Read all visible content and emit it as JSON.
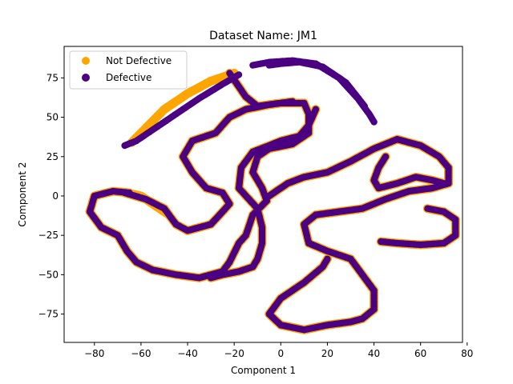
{
  "chart_data": {
    "type": "scatter",
    "title": "Dataset Name: JM1",
    "xlabel": "Component 1",
    "ylabel": "Component 2",
    "xlim": [
      -93,
      78
    ],
    "ylim": [
      -93,
      95
    ],
    "xticks": [
      -80,
      -60,
      -40,
      -20,
      0,
      20,
      40,
      60,
      80
    ],
    "yticks": [
      -75,
      -50,
      -25,
      0,
      25,
      50,
      75
    ],
    "xtick_labels": [
      "−80",
      "−60",
      "−40",
      "−20",
      "0",
      "20",
      "40",
      "60",
      "80"
    ],
    "ytick_labels": [
      "−75",
      "−50",
      "−25",
      "0",
      "25",
      "50",
      "75"
    ],
    "grid": false,
    "legend_placement": "top-left",
    "series": [
      {
        "name": "Not Defective",
        "color": "#ffa500",
        "marker_size": 5.5,
        "curves": [
          [
            [
              -20,
              78
            ],
            [
              -30,
              73
            ],
            [
              -40,
              65
            ],
            [
              -50,
              55
            ],
            [
              -58,
              43
            ],
            [
              -64,
              34
            ]
          ],
          [
            [
              -22,
              78
            ],
            [
              -15,
              63
            ],
            [
              -10,
              57
            ],
            [
              0,
              59
            ],
            [
              10,
              59
            ],
            [
              12,
              52
            ],
            [
              12,
              40
            ],
            [
              5,
              33
            ],
            [
              -5,
              30
            ],
            [
              -10,
              25
            ],
            [
              -12,
              15
            ],
            [
              -8,
              5
            ],
            [
              -6,
              -3
            ],
            [
              -12,
              -12
            ],
            [
              -15,
              -25
            ],
            [
              -18,
              -30
            ],
            [
              -22,
              -42
            ],
            [
              -25,
              -48
            ],
            [
              -35,
              -52
            ],
            [
              -45,
              -50
            ],
            [
              -55,
              -47
            ],
            [
              -62,
              -42
            ],
            [
              -66,
              -35
            ],
            [
              -70,
              -25
            ],
            [
              -77,
              -20
            ],
            [
              -82,
              -10
            ],
            [
              -80,
              0
            ],
            [
              -72,
              3
            ],
            [
              -65,
              2
            ]
          ],
          [
            [
              -67,
              2
            ],
            [
              -58,
              -2
            ],
            [
              -50,
              -8
            ],
            [
              -45,
              -18
            ],
            [
              -40,
              -22
            ],
            [
              -30,
              -18
            ],
            [
              -25,
              -10
            ],
            [
              -22,
              -5
            ],
            [
              -25,
              2
            ],
            [
              -32,
              5
            ],
            [
              -38,
              15
            ],
            [
              -42,
              25
            ],
            [
              -38,
              35
            ],
            [
              -28,
              40
            ],
            [
              -22,
              50
            ],
            [
              -15,
              55
            ],
            [
              -5,
              58
            ],
            [
              5,
              60
            ]
          ],
          [
            [
              15,
              55
            ],
            [
              12,
              45
            ],
            [
              8,
              38
            ],
            [
              0,
              35
            ],
            [
              -5,
              32
            ],
            [
              -12,
              28
            ],
            [
              -17,
              18
            ],
            [
              -18,
              5
            ],
            [
              -10,
              -8
            ],
            [
              -8,
              -20
            ],
            [
              -8,
              -30
            ],
            [
              -10,
              -40
            ],
            [
              -12,
              -45
            ],
            [
              -18,
              -48
            ],
            [
              -25,
              -50
            ],
            [
              -30,
              -52
            ]
          ],
          [
            [
              -5,
              0
            ],
            [
              0,
              5
            ],
            [
              3,
              8
            ],
            [
              10,
              12
            ],
            [
              20,
              15
            ],
            [
              30,
              22
            ],
            [
              40,
              30
            ],
            [
              50,
              36
            ],
            [
              60,
              32
            ],
            [
              68,
              25
            ],
            [
              72,
              18
            ],
            [
              72,
              8
            ],
            [
              65,
              5
            ],
            [
              55,
              3
            ],
            [
              45,
              -2
            ],
            [
              35,
              -8
            ],
            [
              25,
              -10
            ],
            [
              15,
              -12
            ],
            [
              10,
              -18
            ],
            [
              12,
              -30
            ],
            [
              20,
              -35
            ],
            [
              30,
              -40
            ],
            [
              35,
              -50
            ],
            [
              40,
              -60
            ],
            [
              40,
              -72
            ],
            [
              35,
              -78
            ],
            [
              30,
              -80
            ],
            [
              20,
              -82
            ],
            [
              10,
              -85
            ],
            [
              0,
              -82
            ],
            [
              -5,
              -75
            ],
            [
              0,
              -65
            ],
            [
              10,
              -55
            ],
            [
              18,
              -45
            ],
            [
              20,
              -40
            ]
          ],
          [
            [
              45,
              25
            ],
            [
              42,
              18
            ],
            [
              40,
              10
            ],
            [
              42,
              5
            ],
            [
              50,
              8
            ],
            [
              58,
              12
            ],
            [
              65,
              10
            ],
            [
              70,
              8
            ]
          ],
          [
            [
              43,
              -29
            ],
            [
              50,
              -30
            ],
            [
              60,
              -31
            ],
            [
              70,
              -30
            ],
            [
              75,
              -25
            ],
            [
              75,
              -15
            ],
            [
              70,
              -10
            ],
            [
              63,
              -8
            ]
          ],
          [
            [
              -66,
              2
            ],
            [
              -60,
              0
            ],
            [
              -54,
              -6
            ],
            [
              -48,
              -12
            ]
          ]
        ]
      },
      {
        "name": "Defective",
        "color": "#4b0082",
        "marker_size": 4.2,
        "curves": [
          [
            [
              -67,
              32
            ],
            [
              -62,
              35
            ],
            [
              -55,
              42
            ],
            [
              -45,
              52
            ],
            [
              -35,
              62
            ],
            [
              -25,
              71
            ],
            [
              -18,
              77
            ]
          ],
          [
            [
              -12,
              83
            ],
            [
              -5,
              85
            ],
            [
              5,
              86
            ],
            [
              15,
              84
            ],
            [
              25,
              75
            ],
            [
              33,
              62
            ],
            [
              38,
              52
            ],
            [
              40,
              47
            ]
          ],
          [
            [
              -5,
              83
            ],
            [
              0,
              84
            ],
            [
              8,
              85
            ],
            [
              18,
              82
            ],
            [
              28,
              72
            ],
            [
              36,
              57
            ]
          ],
          [
            [
              -22,
              78
            ],
            [
              -15,
              63
            ],
            [
              -10,
              57
            ],
            [
              0,
              59
            ],
            [
              10,
              59
            ],
            [
              12,
              52
            ],
            [
              12,
              40
            ],
            [
              5,
              33
            ],
            [
              -5,
              30
            ],
            [
              -10,
              25
            ],
            [
              -12,
              15
            ],
            [
              -8,
              5
            ],
            [
              -6,
              -3
            ],
            [
              -12,
              -12
            ],
            [
              -15,
              -25
            ],
            [
              -18,
              -30
            ],
            [
              -22,
              -42
            ],
            [
              -25,
              -48
            ],
            [
              -35,
              -52
            ],
            [
              -45,
              -50
            ],
            [
              -55,
              -47
            ],
            [
              -62,
              -42
            ],
            [
              -66,
              -35
            ],
            [
              -70,
              -25
            ],
            [
              -77,
              -20
            ],
            [
              -82,
              -10
            ],
            [
              -80,
              0
            ],
            [
              -72,
              3
            ],
            [
              -65,
              2
            ]
          ],
          [
            [
              -67,
              2
            ],
            [
              -58,
              -2
            ],
            [
              -50,
              -8
            ],
            [
              -45,
              -18
            ],
            [
              -40,
              -22
            ],
            [
              -30,
              -18
            ],
            [
              -25,
              -10
            ],
            [
              -22,
              -5
            ],
            [
              -25,
              2
            ],
            [
              -32,
              5
            ],
            [
              -38,
              15
            ],
            [
              -42,
              25
            ],
            [
              -38,
              35
            ],
            [
              -28,
              40
            ],
            [
              -22,
              50
            ],
            [
              -15,
              55
            ],
            [
              -5,
              58
            ],
            [
              5,
              60
            ]
          ],
          [
            [
              15,
              55
            ],
            [
              12,
              45
            ],
            [
              8,
              38
            ],
            [
              0,
              35
            ],
            [
              -5,
              32
            ],
            [
              -12,
              28
            ],
            [
              -17,
              18
            ],
            [
              -18,
              5
            ],
            [
              -10,
              -8
            ],
            [
              -8,
              -20
            ],
            [
              -8,
              -30
            ],
            [
              -10,
              -40
            ],
            [
              -12,
              -45
            ],
            [
              -18,
              -48
            ],
            [
              -25,
              -50
            ],
            [
              -30,
              -52
            ]
          ],
          [
            [
              -5,
              0
            ],
            [
              0,
              5
            ],
            [
              3,
              8
            ],
            [
              10,
              12
            ],
            [
              20,
              15
            ],
            [
              30,
              22
            ],
            [
              40,
              30
            ],
            [
              50,
              36
            ],
            [
              60,
              32
            ],
            [
              68,
              25
            ],
            [
              72,
              18
            ],
            [
              72,
              8
            ],
            [
              65,
              5
            ],
            [
              55,
              3
            ],
            [
              45,
              -2
            ],
            [
              35,
              -8
            ],
            [
              25,
              -10
            ],
            [
              15,
              -12
            ],
            [
              10,
              -18
            ],
            [
              12,
              -30
            ],
            [
              20,
              -35
            ],
            [
              30,
              -40
            ],
            [
              35,
              -50
            ],
            [
              40,
              -60
            ],
            [
              40,
              -72
            ],
            [
              35,
              -78
            ],
            [
              30,
              -80
            ],
            [
              20,
              -82
            ],
            [
              10,
              -85
            ],
            [
              0,
              -82
            ],
            [
              -5,
              -75
            ],
            [
              0,
              -65
            ],
            [
              10,
              -55
            ],
            [
              18,
              -45
            ],
            [
              20,
              -40
            ]
          ],
          [
            [
              45,
              25
            ],
            [
              42,
              18
            ],
            [
              40,
              10
            ],
            [
              42,
              5
            ],
            [
              50,
              8
            ],
            [
              58,
              12
            ],
            [
              65,
              10
            ],
            [
              70,
              8
            ]
          ],
          [
            [
              43,
              -29
            ],
            [
              50,
              -30
            ],
            [
              60,
              -31
            ],
            [
              70,
              -30
            ],
            [
              75,
              -25
            ],
            [
              75,
              -15
            ],
            [
              70,
              -10
            ],
            [
              63,
              -8
            ]
          ]
        ]
      }
    ]
  }
}
